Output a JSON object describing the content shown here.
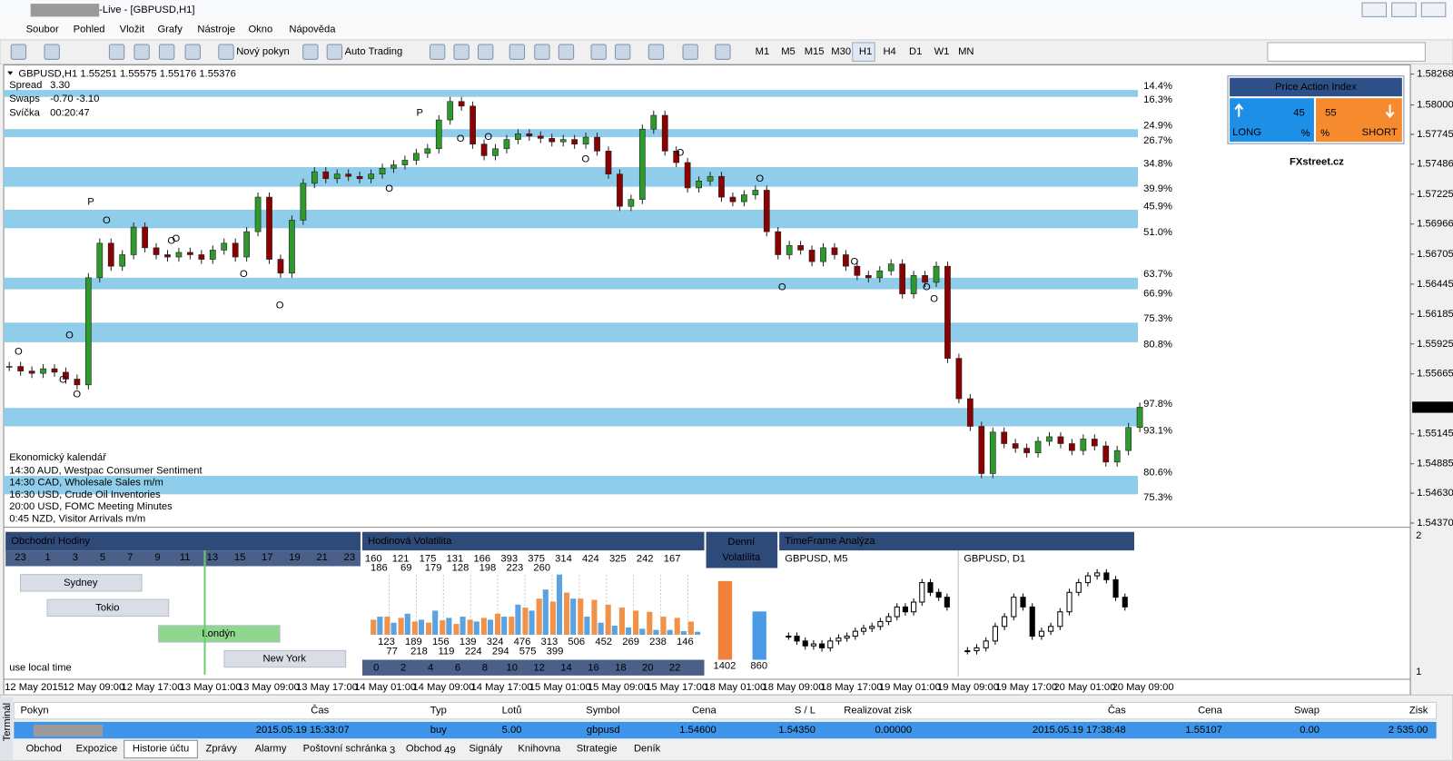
{
  "window": {
    "title": "-Live - [GBPUSD,H1]",
    "menu": [
      "Soubor",
      "Pohled",
      "Vložit",
      "Grafy",
      "Nástroje",
      "Okno",
      "Nápověda"
    ],
    "toolbar": [
      "Nový pokyn",
      "Auto Trading"
    ],
    "timeframes": [
      "M1",
      "M5",
      "M15",
      "M30",
      "H1",
      "H4",
      "D1",
      "W1",
      "MN"
    ]
  },
  "chart": {
    "header": "GBPUSD,H1  1.55251 1.55575 1.55176 1.55376",
    "info": [
      {
        "label": "Spread",
        "value": "3.30"
      },
      {
        "label": "Swaps",
        "value": "-0.70 -3.10"
      },
      {
        "label": "Svíčka",
        "value": "00:20:47"
      }
    ],
    "ylim": [
      1.54342,
      1.58332
    ],
    "yticks": [
      1.58268,
      {
        "value": 1.58,
        "label": "1.58000"
      },
      1.57745,
      1.57486,
      1.57225,
      1.56966,
      1.56705,
      1.56445,
      1.56185,
      1.55925,
      1.55665,
      1.55145,
      1.54885,
      {
        "value": 1.5463,
        "label": "1.54630"
      },
      {
        "value": 1.5437,
        "label": "1.54370"
      }
    ],
    "current_price": 1.55376,
    "closes": [
      1.5573,
      1.5569,
      1.5567,
      1.5571,
      1.5568,
      1.5562,
      1.5557,
      1.565,
      1.568,
      1.566,
      1.567,
      1.5694,
      1.5676,
      1.567,
      1.5668,
      1.5672,
      1.567,
      1.5666,
      1.5674,
      1.568,
      1.5668,
      1.569,
      1.572,
      1.5666,
      1.5654,
      1.57,
      1.5732,
      1.5742,
      1.5736,
      1.574,
      1.5738,
      1.5736,
      1.574,
      1.5745,
      1.5748,
      1.5752,
      1.5758,
      1.5762,
      1.5787,
      1.5803,
      1.5799,
      1.5766,
      1.5756,
      1.5762,
      1.577,
      1.5775,
      1.5773,
      1.5771,
      1.5768,
      1.577,
      1.5766,
      1.5772,
      1.576,
      1.574,
      1.5712,
      1.5718,
      1.5779,
      1.5791,
      1.576,
      1.575,
      1.5728,
      1.5734,
      1.5738,
      1.572,
      1.5716,
      1.5722,
      1.5726,
      1.569,
      1.567,
      1.5678,
      1.5674,
      1.5664,
      1.5676,
      1.567,
      1.566,
      1.5652,
      1.565,
      1.5656,
      1.5662,
      1.5636,
      1.5652,
      1.5646,
      1.566,
      1.558,
      1.5545,
      1.5521,
      1.548,
      1.5516,
      1.5506,
      1.5502,
      1.5498,
      1.5508,
      1.5512,
      1.5506,
      1.55,
      1.551,
      1.5504,
      1.549,
      1.55,
      1.552,
      1.55376
    ],
    "zones": [
      [
        1.5813,
        1.5807
      ],
      [
        1.5779,
        1.5772
      ],
      [
        1.5746,
        1.5729
      ],
      [
        1.5709,
        1.5693
      ],
      [
        1.565,
        1.564
      ],
      [
        1.5611,
        1.5594
      ],
      [
        1.5537,
        1.5521
      ],
      [
        1.5478,
        1.5462
      ]
    ],
    "level_labels": [
      "14.4%",
      "16.3%",
      "24.9%",
      "26.7%",
      "34.8%",
      "39.9%",
      "45.9%",
      "51.0%",
      "63.7%",
      "66.9%",
      "75.3%",
      "80.8%",
      "97.8%",
      "93.1%",
      "80.6%",
      "75.3%"
    ],
    "markers": [
      "P",
      "P",
      "O",
      "O",
      "O",
      "O",
      "O",
      "O",
      "O",
      "O",
      "O",
      "O",
      "O",
      "O",
      "O",
      "O",
      "O",
      "O",
      "O",
      "O",
      "O"
    ],
    "time_labels": [
      "12 May 2015",
      "12 May 09:00",
      "12 May 17:00",
      "13 May 01:00",
      "13 May 09:00",
      "13 May 17:00",
      "14 May 01:00",
      "14 May 09:00",
      "14 May 17:00",
      "15 May 01:00",
      "15 May 09:00",
      "15 May 17:00",
      "18 May 01:00",
      "18 May 09:00",
      "18 May 17:00",
      "19 May 01:00",
      "19 May 09:00",
      "19 May 17:00",
      "20 May 01:00",
      "20 May 09:00"
    ],
    "indicator_axis": [
      "2",
      "1"
    ]
  },
  "calendar": {
    "title": "Ekonomický kalendář",
    "events": [
      "14:30 AUD, Westpac Consumer Sentiment",
      "14:30 CAD, Wholesale Sales m/m",
      "16:30 USD, Crude Oil Inventories",
      "20:00 USD, FOMC Meeting Minutes",
      "0:45 NZD, Visitor Arrivals m/m"
    ]
  },
  "price_action_index": {
    "title": "Price Action Index",
    "long": 45,
    "short": 55,
    "long_label": "LONG",
    "short_label": "SHORT",
    "unit": "%",
    "brand": "FXstreet.cz"
  },
  "trading_hours": {
    "title": "Obchodní Hodiny",
    "hours": [
      23,
      1,
      3,
      5,
      7,
      9,
      11,
      13,
      15,
      17,
      19,
      21,
      23
    ],
    "sessions": [
      "Sydney",
      "Tokio",
      "Londýn",
      "New York"
    ],
    "note": "use local time"
  },
  "hourly_volatility": {
    "title": "Hodinová Volatilita",
    "top_orange": [
      160,
      121,
      175,
      131,
      166,
      393,
      375,
      314,
      424,
      325,
      242,
      167
    ],
    "top_blue": [
      186,
      69,
      179,
      128,
      198,
      223,
      260
    ],
    "bottom_orange": [
      123,
      189,
      156,
      139,
      324,
      476,
      313,
      506,
      452,
      269,
      238,
      146
    ],
    "bottom_blue": [
      77,
      218,
      119,
      224,
      294,
      575,
      399
    ],
    "hours": [
      0,
      2,
      4,
      6,
      8,
      10,
      12,
      14,
      16,
      18,
      20,
      22
    ],
    "orange": [
      25,
      30,
      28,
      22,
      20,
      24,
      18,
      25,
      28,
      35,
      30,
      45,
      60,
      55,
      70,
      60,
      58,
      50,
      45,
      40,
      38,
      30,
      28,
      22
    ],
    "blue": [
      30,
      20,
      35,
      25,
      40,
      28,
      30,
      22,
      25,
      30,
      50,
      40,
      75,
      100,
      60,
      30,
      20,
      15,
      12,
      10,
      8,
      8,
      6,
      5
    ]
  },
  "daily_volatility": {
    "title_lines": [
      "Denní",
      "Volatilita"
    ],
    "values": [
      1402,
      860
    ]
  },
  "timeframe_analysis": {
    "title": "TimeFrame Analýza",
    "charts": [
      {
        "label": "GBPUSD, M5",
        "closes": [
          30,
          25,
          20,
          22,
          18,
          25,
          28,
          30,
          35,
          38,
          40,
          45,
          50,
          60,
          55,
          65,
          85,
          75,
          70,
          60
        ]
      },
      {
        "label": "GBPUSD, D1",
        "closes": [
          15,
          18,
          25,
          40,
          50,
          70,
          60,
          30,
          35,
          40,
          55,
          75,
          85,
          92,
          95,
          88,
          70,
          60
        ]
      }
    ]
  },
  "terminal": {
    "side_label": "Terminál",
    "columns": [
      "Pokyn",
      "Čas",
      "Typ",
      "Lotů",
      "Symbol",
      "Cena",
      "S / L",
      "Realizovat zisk",
      "Čas",
      "Cena",
      "Swap",
      "Zisk"
    ],
    "row": [
      "2015.05.19 15:33:07",
      "buy",
      "5.00",
      "gbpusd",
      "1.54600",
      "1.54350",
      "0.00000",
      "2015.05.19 17:38:48",
      "1.55107",
      "0.00",
      "2 535.00"
    ],
    "tabs": [
      {
        "label": "Obchod"
      },
      {
        "label": "Expozice"
      },
      {
        "label": "Historie účtu"
      },
      {
        "label": "Zprávy"
      },
      {
        "label": "Alarmy"
      },
      {
        "label": "Poštovní schránka",
        "badge": 3
      },
      {
        "label": "Obchod",
        "badge": 49
      },
      {
        "label": "Signály"
      },
      {
        "label": "Knihovna"
      },
      {
        "label": "Strategie"
      },
      {
        "label": "Deník"
      }
    ],
    "active_tab": 2
  }
}
